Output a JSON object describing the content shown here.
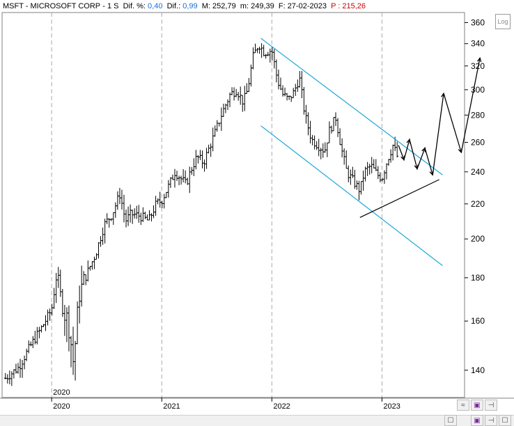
{
  "header": {
    "symbol": "MSFT - MICROSOFT CORP",
    "period": "1 S",
    "dif_pct_label": "Dif. %:",
    "dif_pct_value": "0,40",
    "dif_label": "Dif.:",
    "dif_value": "0,99",
    "max_label": "M: 252,79",
    "min_label": "m: 249,39",
    "date_label": "F: 27-02-2023",
    "price_label": "P : 215,26"
  },
  "log_button": "Log",
  "colors": {
    "channel": "#1ca7d8",
    "bars": "#000000",
    "header_value": "#1a6fd6",
    "header_price": "#d00000",
    "grid": "#aaaaaa"
  },
  "icons": [
    "zoom-icon",
    "save-icon",
    "pin-icon",
    "checkbox-icon"
  ],
  "chart_data": {
    "type": "ohlc-bar",
    "scale": "log",
    "y_ticks": [
      140,
      160,
      180,
      200,
      220,
      240,
      260,
      280,
      300,
      320,
      340,
      360
    ],
    "y_tick_labels": [
      "140",
      "160",
      "180",
      "200",
      "220",
      "240",
      "260",
      "280",
      "300",
      "320",
      "340",
      "360"
    ],
    "x_ticks": [
      2020,
      2021,
      2022,
      2023
    ],
    "x_tick_labels": [
      "2020",
      "2021",
      "2022",
      "2023"
    ],
    "year_marker": "2020",
    "x_range": [
      2019.55,
      2023.75
    ],
    "y_range": [
      130,
      370
    ],
    "price_path": [
      [
        2019.58,
        137
      ],
      [
        2019.7,
        141
      ],
      [
        2019.8,
        149
      ],
      [
        2019.92,
        158
      ],
      [
        2020.0,
        165
      ],
      [
        2020.05,
        183
      ],
      [
        2020.1,
        165
      ],
      [
        2020.15,
        160
      ],
      [
        2020.2,
        142
      ],
      [
        2020.25,
        172
      ],
      [
        2020.32,
        182
      ],
      [
        2020.4,
        192
      ],
      [
        2020.48,
        208
      ],
      [
        2020.55,
        214
      ],
      [
        2020.62,
        226
      ],
      [
        2020.67,
        210
      ],
      [
        2020.72,
        214
      ],
      [
        2020.8,
        213
      ],
      [
        2020.88,
        210
      ],
      [
        2020.95,
        220
      ],
      [
        2021.0,
        222
      ],
      [
        2021.07,
        232
      ],
      [
        2021.12,
        240
      ],
      [
        2021.17,
        236
      ],
      [
        2021.22,
        232
      ],
      [
        2021.27,
        242
      ],
      [
        2021.32,
        250
      ],
      [
        2021.38,
        246
      ],
      [
        2021.43,
        256
      ],
      [
        2021.48,
        266
      ],
      [
        2021.55,
        282
      ],
      [
        2021.62,
        296
      ],
      [
        2021.68,
        300
      ],
      [
        2021.74,
        290
      ],
      [
        2021.78,
        300
      ],
      [
        2021.83,
        328
      ],
      [
        2021.88,
        340
      ],
      [
        2021.93,
        332
      ],
      [
        2022.0,
        334
      ],
      [
        2022.05,
        308
      ],
      [
        2022.1,
        296
      ],
      [
        2022.15,
        292
      ],
      [
        2022.2,
        298
      ],
      [
        2022.25,
        310
      ],
      [
        2022.3,
        280
      ],
      [
        2022.36,
        262
      ],
      [
        2022.42,
        258
      ],
      [
        2022.48,
        254
      ],
      [
        2022.52,
        268
      ],
      [
        2022.58,
        278
      ],
      [
        2022.63,
        256
      ],
      [
        2022.68,
        240
      ],
      [
        2022.74,
        234
      ],
      [
        2022.8,
        228
      ],
      [
        2022.84,
        240
      ],
      [
        2022.9,
        244
      ],
      [
        2022.96,
        238
      ],
      [
        2023.0,
        236
      ],
      [
        2023.05,
        248
      ],
      [
        2023.1,
        258
      ],
      [
        2023.14,
        250
      ]
    ],
    "channel_upper": [
      [
        2021.9,
        345
      ],
      [
        2023.55,
        238
      ]
    ],
    "channel_lower": [
      [
        2021.9,
        272
      ],
      [
        2023.55,
        186
      ]
    ],
    "support_line": [
      [
        2022.8,
        212
      ],
      [
        2023.52,
        235
      ]
    ],
    "projection": [
      [
        2023.15,
        258
      ],
      [
        2023.2,
        248
      ],
      [
        2023.25,
        262
      ],
      [
        2023.32,
        242
      ],
      [
        2023.39,
        256
      ],
      [
        2023.46,
        238
      ],
      [
        2023.56,
        297
      ],
      [
        2023.72,
        253
      ],
      [
        2023.89,
        327
      ]
    ]
  }
}
